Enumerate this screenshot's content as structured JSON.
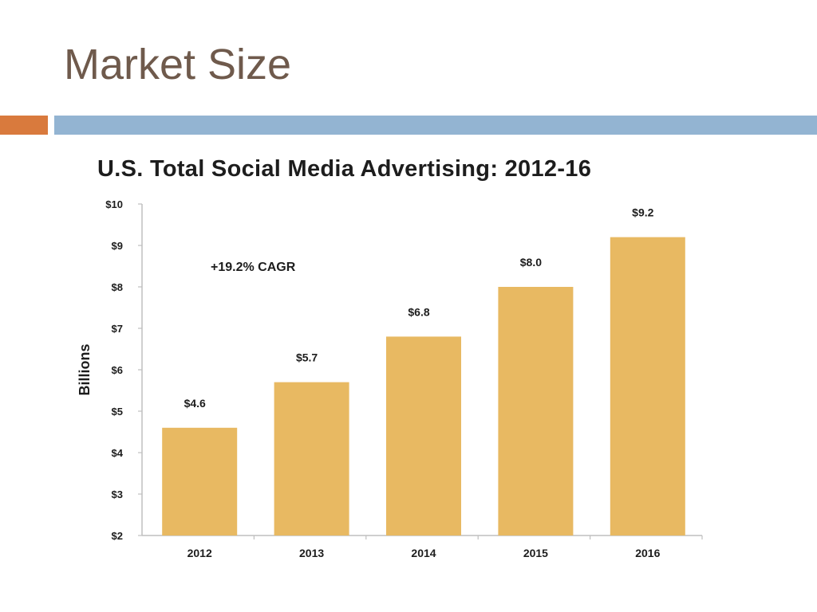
{
  "slide": {
    "title": "Market Size"
  },
  "colors": {
    "title": "#6f5a4c",
    "accent_orange": "#d97a3d",
    "accent_blue": "#93b4d2",
    "bar": "#e8b962",
    "axis": "#bfbfbf",
    "text": "#1d1d1d"
  },
  "chart_data": {
    "type": "bar",
    "title": "U.S. Total Social Media Advertising: 2012-16",
    "ylabel": "Billions",
    "xlabel": "",
    "categories": [
      "2012",
      "2013",
      "2014",
      "2015",
      "2016"
    ],
    "values": [
      4.6,
      5.7,
      6.8,
      8.0,
      9.2
    ],
    "value_labels": [
      "$4.6",
      "$5.7",
      "$6.8",
      "$8.0",
      "$9.2"
    ],
    "ylim": [
      2,
      10
    ],
    "yticks": [
      "$2",
      "$3",
      "$4",
      "$5",
      "$6",
      "$7",
      "$8",
      "$9",
      "$10"
    ],
    "annotation": "+19.2% CAGR",
    "grid": false,
    "legend": "none"
  }
}
